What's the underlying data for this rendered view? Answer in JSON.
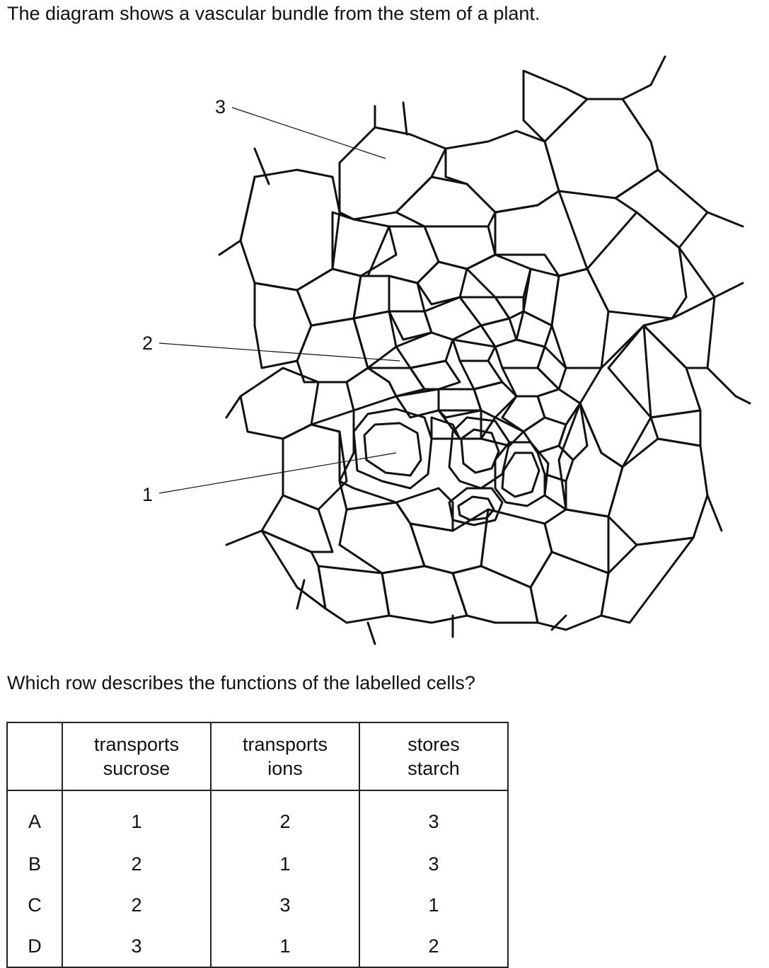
{
  "intro": "The diagram shows a vascular bundle from the stem of a plant.",
  "question": "Which row describes the functions of the labelled cells?",
  "diagram": {
    "labels": [
      "1",
      "2",
      "3"
    ]
  },
  "table": {
    "headers": [
      {
        "line1": "",
        "line2": ""
      },
      {
        "line1": "transports",
        "line2": "sucrose"
      },
      {
        "line1": "transports",
        "line2": "ions"
      },
      {
        "line1": "stores",
        "line2": "starch"
      }
    ],
    "rows": [
      {
        "option": "A",
        "values": [
          "1",
          "2",
          "3"
        ]
      },
      {
        "option": "B",
        "values": [
          "2",
          "1",
          "3"
        ]
      },
      {
        "option": "C",
        "values": [
          "2",
          "3",
          "1"
        ]
      },
      {
        "option": "D",
        "values": [
          "3",
          "1",
          "2"
        ]
      }
    ]
  }
}
